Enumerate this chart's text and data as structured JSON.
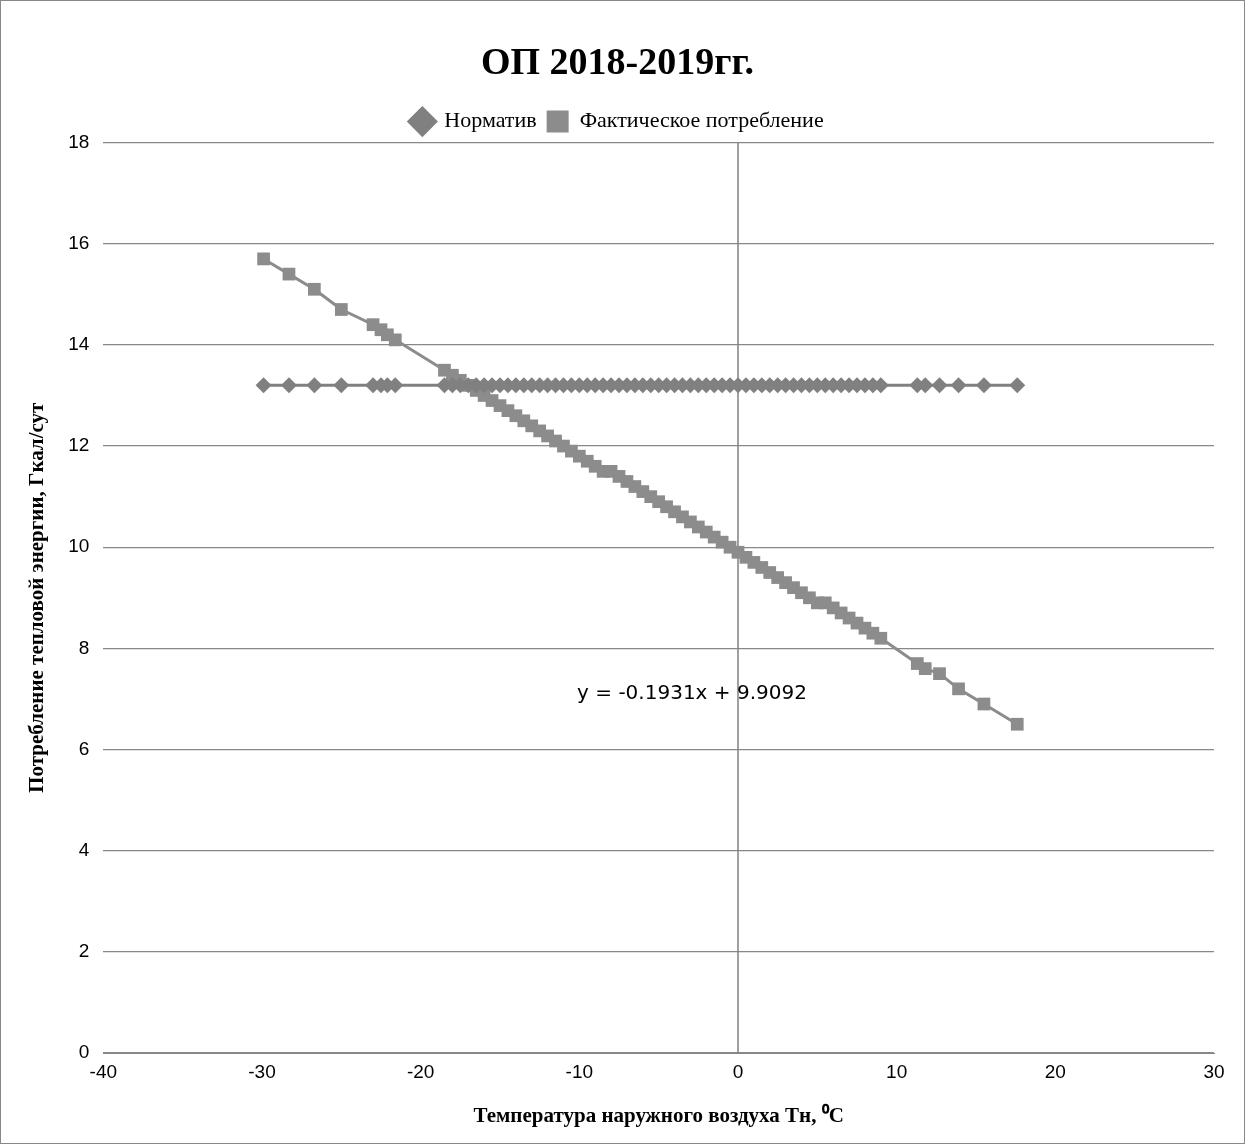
{
  "chart_data": {
    "type": "line",
    "title": "ОП 2018-2019гг.",
    "xlabel": "Температура наружного воздуха Тн, ⁰C",
    "ylabel": "Потребление тепловой энергии, Гкал/сут",
    "x": [
      -29.9,
      -28.3,
      -26.7,
      -25.0,
      -23.0,
      -22.5,
      -22.1,
      -21.6,
      -18.5,
      -18.0,
      -17.5,
      -17.0,
      -16.5,
      -16.0,
      -15.5,
      -15.0,
      -14.5,
      -14.0,
      -13.5,
      -13.0,
      -12.5,
      -12.0,
      -11.5,
      -11.0,
      -10.5,
      -10.0,
      -9.5,
      -9.0,
      -8.5,
      -8.0,
      -7.5,
      -7.0,
      -6.5,
      -6.0,
      -5.5,
      -5.0,
      -4.5,
      -4.0,
      -3.5,
      -3.0,
      -2.5,
      -2.0,
      -1.5,
      -1.0,
      -0.5,
      0.0,
      0.5,
      1.0,
      1.5,
      2.0,
      2.5,
      3.0,
      3.5,
      4.0,
      4.5,
      5.0,
      5.5,
      6.0,
      6.5,
      7.0,
      7.5,
      8.0,
      8.5,
      9.0,
      11.3,
      11.8,
      12.7,
      13.9,
      15.5,
      17.6
    ],
    "series": [
      {
        "name": "Норматив",
        "color": "#808080",
        "marker": "diamond",
        "values": [
          13.2,
          13.2,
          13.2,
          13.2,
          13.2,
          13.2,
          13.2,
          13.2,
          13.2,
          13.2,
          13.2,
          13.2,
          13.2,
          13.2,
          13.2,
          13.2,
          13.2,
          13.2,
          13.2,
          13.2,
          13.2,
          13.2,
          13.2,
          13.2,
          13.2,
          13.2,
          13.2,
          13.2,
          13.2,
          13.2,
          13.2,
          13.2,
          13.2,
          13.2,
          13.2,
          13.2,
          13.2,
          13.2,
          13.2,
          13.2,
          13.2,
          13.2,
          13.2,
          13.2,
          13.2,
          13.2,
          13.2,
          13.2,
          13.2,
          13.2,
          13.2,
          13.2,
          13.2,
          13.2,
          13.2,
          13.2,
          13.2,
          13.2,
          13.2,
          13.2,
          13.2,
          13.2,
          13.2,
          13.2,
          13.2,
          13.2,
          13.2,
          13.2,
          13.2,
          13.2
        ]
      },
      {
        "name": "Фактическое потребление",
        "color": "#8c8c8c",
        "marker": "square",
        "values": [
          15.7,
          15.4,
          15.1,
          14.7,
          14.4,
          14.3,
          14.2,
          14.1,
          13.5,
          13.4,
          13.3,
          13.2,
          13.1,
          13.0,
          12.9,
          12.8,
          12.7,
          12.6,
          12.5,
          12.4,
          12.3,
          12.2,
          12.1,
          12.0,
          11.9,
          11.8,
          11.7,
          11.6,
          11.5,
          11.5,
          11.4,
          11.3,
          11.2,
          11.1,
          11.0,
          10.9,
          10.8,
          10.7,
          10.6,
          10.5,
          10.4,
          10.3,
          10.2,
          10.1,
          10.0,
          9.9,
          9.8,
          9.7,
          9.6,
          9.5,
          9.4,
          9.3,
          9.2,
          9.1,
          9.0,
          8.9,
          8.9,
          8.8,
          8.7,
          8.6,
          8.5,
          8.4,
          8.3,
          8.2,
          7.7,
          7.6,
          7.5,
          7.2,
          6.9,
          6.5
        ]
      }
    ],
    "xlim": [
      -40,
      30
    ],
    "xticks": [
      -40,
      -30,
      -20,
      -10,
      0,
      10,
      20,
      30
    ],
    "ylim": [
      0,
      18
    ],
    "yticks": [
      0,
      2,
      4,
      6,
      8,
      10,
      12,
      14,
      16,
      18
    ],
    "grid": "y",
    "legend": "top",
    "ref_lines": [
      {
        "axis": "x",
        "value": 0,
        "color": "#808080"
      }
    ],
    "annotations": [
      "y = -0.1931x + 9.9092"
    ]
  }
}
